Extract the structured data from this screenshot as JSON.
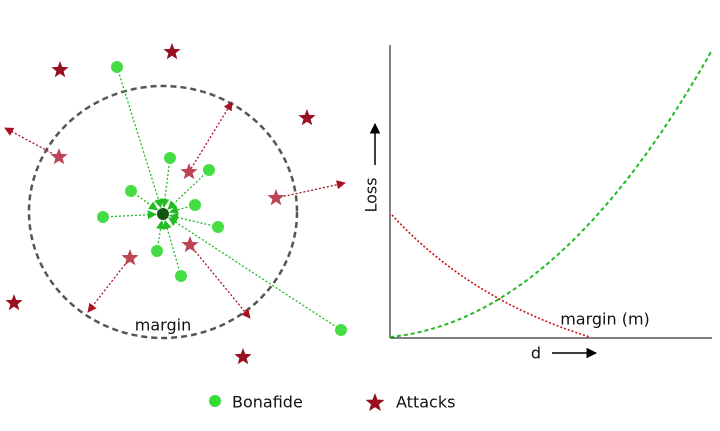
{
  "diagram": {
    "circle_label": "margin"
  },
  "plot": {
    "y_label": "Loss",
    "x_label": "d",
    "curve_label": "margin (m)"
  },
  "legend": {
    "items": [
      {
        "label": "Bonafide"
      },
      {
        "label": "Attacks"
      }
    ]
  }
}
